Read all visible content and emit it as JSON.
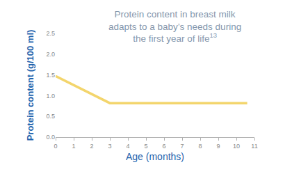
{
  "chart_data": {
    "type": "line",
    "annotations": [
      {
        "lines": [
          "Protein content in breast milk",
          "adapts to a baby’s needs during",
          "the first year of life"
        ],
        "ref": "13"
      }
    ],
    "x_label": "Age (months)",
    "y_label": "Protein content (g/100 ml)",
    "x": [
      0,
      3,
      10.6
    ],
    "values": [
      1.47,
      0.82,
      0.82
    ],
    "color": "#f3d56c",
    "xlim": [
      0,
      11
    ],
    "xticks": [
      0,
      1,
      2,
      3,
      4,
      5,
      6,
      7,
      8,
      9,
      10,
      11
    ],
    "ylim": [
      0,
      2.5
    ],
    "yticks": [
      {
        "value": 0,
        "label": "0.0"
      },
      {
        "value": 0.5,
        "label": "0.5"
      },
      {
        "value": 1,
        "label": "1.0"
      },
      {
        "value": 1.5,
        "label": "1.5"
      },
      {
        "value": 2,
        "label": "2.0"
      },
      {
        "value": 2.5,
        "label": "2.5"
      }
    ],
    "grid": false
  }
}
